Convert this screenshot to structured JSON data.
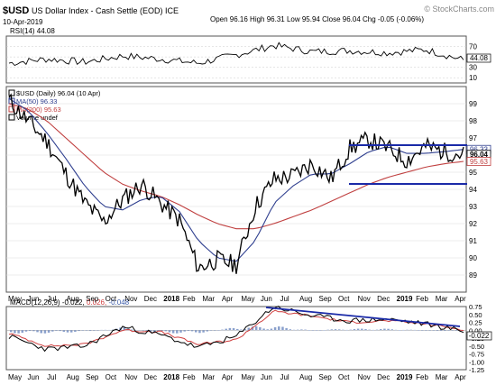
{
  "header": {
    "symbol": "$USD",
    "name": "US Dollar Index - Cash Settle (EOD) ICE",
    "date": "10-Apr-2019",
    "quote": "Open 96.16 High 96.31 Low 95.94 Close 96.04 Chg -0.05 (-0.06%)",
    "watermark": "© StockCharts.com"
  },
  "rsi_panel": {
    "label": "RSI(14) 44.08",
    "badge": "44.08",
    "ticks": [
      "70",
      "50",
      "30",
      "10"
    ]
  },
  "price_panel": {
    "legend": [
      "$USD (Daily) 96.04 (10 Apr)",
      "MA(50) 96.33",
      "MA(200) 95.63",
      "Volume undef"
    ],
    "ticks": [
      "99",
      "98",
      "97",
      "96",
      "95",
      "94",
      "93",
      "92",
      "91",
      "90",
      "89"
    ],
    "badges": [
      "96.33",
      "96.04",
      "95.63"
    ]
  },
  "macd_panel": {
    "label_prefix": "MACD(12,26,9)",
    "macd": "-0.022,",
    "signal": "0.026,",
    "hist": "-0.048",
    "ticks": [
      "0.75",
      "0.50",
      "0.25",
      "0.00",
      "-0.25",
      "-0.50",
      "-0.75",
      "-1.00",
      "-1.25"
    ],
    "badge": "-0.022"
  },
  "x_axis": {
    "labels": [
      "May",
      "Jun",
      "Jul",
      "Aug",
      "Sep",
      "Oct",
      "Nov",
      "Dec",
      "2018",
      "Feb",
      "Mar",
      "Apr",
      "May",
      "Jun",
      "Jul",
      "Aug",
      "Sep",
      "Oct",
      "Nov",
      "Dec",
      "2019",
      "Feb",
      "Mar",
      "Apr"
    ]
  },
  "colors": {
    "price": "#000000",
    "ma50": "#2f3f8f",
    "ma200": "#c04040",
    "trendline": "#2233bb",
    "macd_signal": "#d04040"
  },
  "chart_data": [
    {
      "type": "line",
      "title": "RSI(14)",
      "ylim": [
        0,
        90
      ],
      "x": [
        "2017-04",
        "2017-06",
        "2017-08",
        "2017-10",
        "2017-12",
        "2018-02",
        "2018-04",
        "2018-06",
        "2018-08",
        "2018-10",
        "2018-12",
        "2019-02",
        "2019-04"
      ],
      "series": [
        {
          "name": "RSI(14)",
          "values": [
            38,
            46,
            40,
            52,
            46,
            38,
            54,
            72,
            60,
            62,
            58,
            64,
            44
          ]
        }
      ]
    },
    {
      "type": "line",
      "title": "$USD (Daily)",
      "ylim": [
        88,
        100
      ],
      "x": [
        "2017-04",
        "2017-05",
        "2017-06",
        "2017-07",
        "2017-08",
        "2017-09",
        "2017-10",
        "2017-11",
        "2017-12",
        "2018-01",
        "2018-02",
        "2018-03",
        "2018-04",
        "2018-05",
        "2018-06",
        "2018-07",
        "2018-08",
        "2018-09",
        "2018-10",
        "2018-11",
        "2018-12",
        "2019-01",
        "2019-02",
        "2019-03",
        "2019-04"
      ],
      "series": [
        {
          "name": "$USD",
          "values": [
            99.2,
            98.0,
            96.8,
            94.9,
            93.2,
            92.1,
            93.4,
            94.3,
            93.2,
            92.2,
            89.4,
            89.9,
            89.6,
            93.0,
            94.6,
            94.8,
            95.5,
            94.6,
            96.4,
            96.9,
            96.4,
            95.7,
            96.5,
            96.2,
            96.04
          ]
        },
        {
          "name": "MA(50)",
          "values": [
            99.3,
            98.6,
            97.3,
            95.8,
            94.2,
            93.0,
            92.8,
            93.4,
            93.6,
            92.7,
            91.0,
            90.0,
            89.8,
            91.0,
            93.2,
            94.2,
            94.9,
            94.9,
            95.5,
            96.2,
            96.5,
            96.1,
            96.1,
            96.2,
            96.33
          ]
        },
        {
          "name": "MA(200)",
          "values": [
            99.0,
            98.7,
            98.0,
            97.0,
            96.0,
            95.0,
            94.3,
            93.9,
            93.6,
            93.1,
            92.5,
            92.0,
            91.7,
            91.7,
            92.0,
            92.4,
            92.8,
            93.3,
            93.8,
            94.3,
            94.7,
            95.0,
            95.3,
            95.5,
            95.63
          ]
        }
      ]
    },
    {
      "type": "line",
      "title": "MACD(12,26,9)",
      "ylim": [
        -1.25,
        0.75
      ],
      "x": [
        "2017-04",
        "2017-06",
        "2017-08",
        "2017-10",
        "2017-12",
        "2018-02",
        "2018-04",
        "2018-06",
        "2018-08",
        "2018-10",
        "2018-12",
        "2019-02",
        "2019-04"
      ],
      "series": [
        {
          "name": "MACD",
          "values": [
            -0.2,
            -0.6,
            -0.5,
            0.1,
            -0.15,
            -0.55,
            -0.2,
            0.75,
            0.45,
            0.3,
            0.35,
            0.2,
            -0.022
          ]
        },
        {
          "name": "Signal",
          "values": [
            -0.1,
            -0.5,
            -0.45,
            0.0,
            -0.05,
            -0.45,
            -0.3,
            0.6,
            0.45,
            0.25,
            0.3,
            0.2,
            0.026
          ]
        },
        {
          "name": "Histogram",
          "values": [
            -0.1,
            -0.1,
            -0.05,
            0.1,
            -0.1,
            -0.1,
            0.1,
            0.15,
            0.0,
            0.05,
            0.05,
            0.0,
            -0.048
          ]
        }
      ]
    }
  ]
}
